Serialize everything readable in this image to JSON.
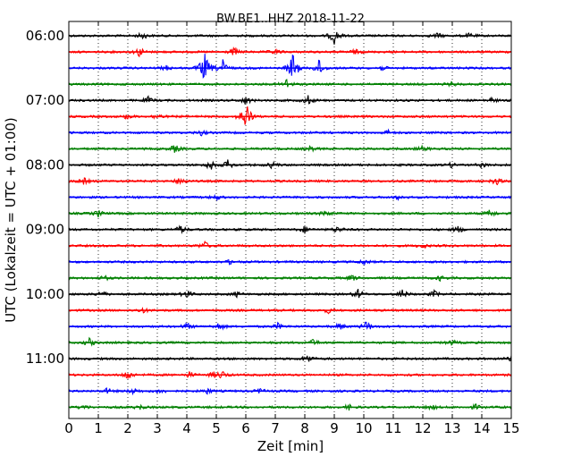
{
  "chart_data": {
    "type": "line",
    "title": "BW.BE1..HHZ 2018-11-22",
    "xlabel": "Zeit  [min]",
    "ylabel": "UTC (Lokalzeit = UTC + 01:00)",
    "xlim": [
      0,
      15
    ],
    "x_ticks": [
      "0",
      "1",
      "2",
      "3",
      "4",
      "5",
      "6",
      "7",
      "8",
      "9",
      "10",
      "11",
      "12",
      "13",
      "14",
      "15"
    ],
    "y_tick_labels": [
      "06:00",
      "07:00",
      "08:00",
      "09:00",
      "10:00",
      "11:00"
    ],
    "grid": {
      "vertical_dotted": true
    },
    "trace_color_cycle": [
      "#000000",
      "#ff0000",
      "#0000ff",
      "#008000"
    ],
    "rows": [
      {
        "start": "06:00",
        "events": [
          [
            2.5,
            0.4
          ],
          [
            9.0,
            1.0
          ],
          [
            12.5,
            0.3
          ],
          [
            13.6,
            0.3
          ]
        ]
      },
      {
        "start": "06:15",
        "events": [
          [
            2.4,
            0.6
          ],
          [
            5.6,
            0.5
          ],
          [
            7.0,
            0.3
          ],
          [
            9.7,
            0.3
          ]
        ]
      },
      {
        "start": "06:30",
        "events": [
          [
            4.6,
            2.0
          ],
          [
            5.2,
            1.2
          ],
          [
            7.6,
            2.0
          ],
          [
            8.5,
            1.1
          ],
          [
            3.3,
            0.3
          ],
          [
            10.6,
            0.3
          ]
        ]
      },
      {
        "start": "06:45",
        "events": [
          [
            7.4,
            0.7
          ],
          [
            13.0,
            0.3
          ]
        ]
      },
      {
        "start": "07:00",
        "events": [
          [
            2.7,
            0.4
          ],
          [
            6.0,
            0.5
          ],
          [
            8.1,
            0.6
          ],
          [
            14.3,
            0.3
          ]
        ]
      },
      {
        "start": "07:15",
        "events": [
          [
            6.0,
            2.2
          ],
          [
            3.0,
            0.4
          ],
          [
            2.0,
            0.3
          ]
        ]
      },
      {
        "start": "07:30",
        "events": [
          [
            4.5,
            0.3
          ],
          [
            10.8,
            0.3
          ]
        ]
      },
      {
        "start": "07:45",
        "events": [
          [
            3.6,
            0.5
          ],
          [
            8.2,
            0.3
          ],
          [
            12.0,
            0.3
          ]
        ]
      },
      {
        "start": "08:00",
        "events": [
          [
            4.8,
            0.6
          ],
          [
            5.4,
            0.6
          ],
          [
            6.9,
            0.4
          ],
          [
            13.0,
            0.3
          ],
          [
            14.0,
            0.3
          ]
        ]
      },
      {
        "start": "08:15",
        "events": [
          [
            0.5,
            0.4
          ],
          [
            3.8,
            0.6
          ],
          [
            14.5,
            0.4
          ]
        ]
      },
      {
        "start": "08:30",
        "events": [
          [
            5.0,
            0.3
          ],
          [
            11.2,
            0.3
          ]
        ]
      },
      {
        "start": "08:45",
        "events": [
          [
            1.0,
            0.4
          ],
          [
            8.7,
            0.4
          ],
          [
            14.3,
            0.5
          ]
        ]
      },
      {
        "start": "09:00",
        "events": [
          [
            3.8,
            0.5
          ],
          [
            8.0,
            0.4
          ],
          [
            9.1,
            0.4
          ],
          [
            13.2,
            0.4
          ]
        ]
      },
      {
        "start": "09:15",
        "events": [
          [
            4.6,
            0.5
          ],
          [
            12.0,
            0.3
          ]
        ]
      },
      {
        "start": "09:30",
        "events": [
          [
            5.5,
            0.3
          ],
          [
            10.0,
            0.3
          ]
        ]
      },
      {
        "start": "09:45",
        "events": [
          [
            1.2,
            0.3
          ],
          [
            9.6,
            0.4
          ],
          [
            12.6,
            0.3
          ]
        ]
      },
      {
        "start": "10:00",
        "events": [
          [
            1.1,
            0.4
          ],
          [
            4.0,
            0.5
          ],
          [
            5.7,
            0.3
          ],
          [
            9.8,
            0.6
          ],
          [
            11.3,
            0.6
          ],
          [
            12.4,
            0.4
          ]
        ]
      },
      {
        "start": "10:15",
        "events": [
          [
            2.5,
            0.3
          ],
          [
            8.8,
            0.3
          ]
        ]
      },
      {
        "start": "10:30",
        "events": [
          [
            4.0,
            0.4
          ],
          [
            5.1,
            0.5
          ],
          [
            7.1,
            0.4
          ],
          [
            9.2,
            0.4
          ],
          [
            10.1,
            0.7
          ]
        ]
      },
      {
        "start": "10:45",
        "events": [
          [
            0.7,
            0.5
          ],
          [
            8.3,
            0.4
          ],
          [
            13.0,
            0.3
          ]
        ]
      },
      {
        "start": "11:00",
        "events": [
          [
            8.1,
            0.6
          ],
          [
            15.0,
            0.4
          ]
        ]
      },
      {
        "start": "11:15",
        "events": [
          [
            2.0,
            0.6
          ],
          [
            4.1,
            0.4
          ],
          [
            5.2,
            0.5
          ],
          [
            4.9,
            0.3
          ]
        ]
      },
      {
        "start": "11:30",
        "events": [
          [
            1.3,
            0.3
          ],
          [
            2.2,
            0.4
          ],
          [
            3.1,
            0.3
          ],
          [
            4.7,
            0.3
          ],
          [
            6.5,
            0.3
          ]
        ]
      },
      {
        "start": "11:45",
        "events": [
          [
            0.5,
            0.3
          ],
          [
            2.4,
            0.3
          ],
          [
            9.5,
            0.3
          ],
          [
            12.3,
            0.3
          ],
          [
            13.8,
            0.3
          ]
        ]
      }
    ]
  }
}
